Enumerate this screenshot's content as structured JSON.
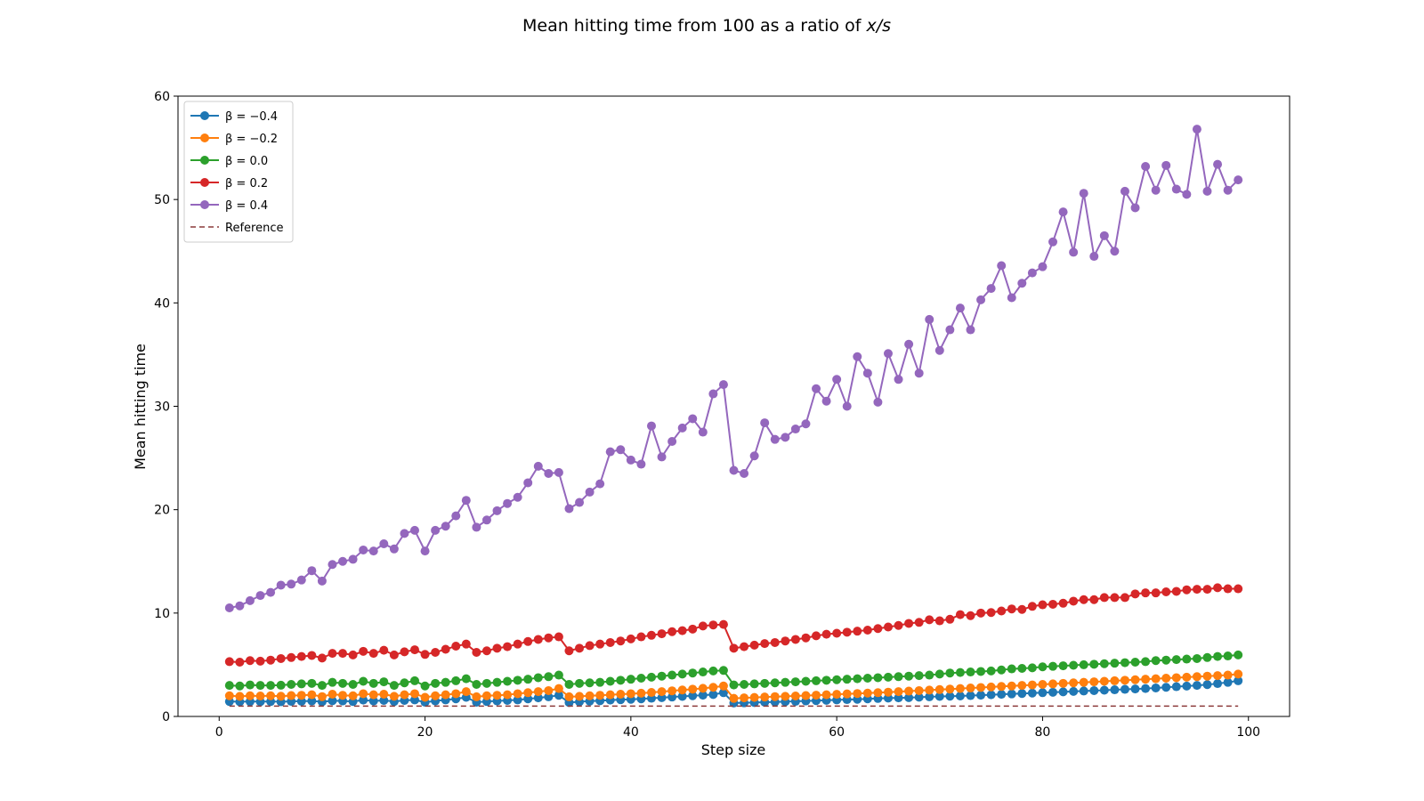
{
  "chart_data": {
    "type": "line",
    "title_prefix": "Mean hitting time from 100 as a ratio of ",
    "title_math": "x/s",
    "xlabel": "Step size",
    "ylabel": "Mean hitting time",
    "xlim": [
      -4,
      104
    ],
    "ylim": [
      0,
      60
    ],
    "xticks": [
      0,
      20,
      40,
      60,
      80,
      100
    ],
    "yticks": [
      0,
      10,
      20,
      30,
      40,
      50,
      60
    ],
    "legend_position": "upper-left",
    "x": [
      1,
      2,
      3,
      4,
      5,
      6,
      7,
      8,
      9,
      10,
      11,
      12,
      13,
      14,
      15,
      16,
      17,
      18,
      19,
      20,
      21,
      22,
      23,
      24,
      25,
      26,
      27,
      28,
      29,
      30,
      31,
      32,
      33,
      34,
      35,
      36,
      37,
      38,
      39,
      40,
      41,
      42,
      43,
      44,
      45,
      46,
      47,
      48,
      49,
      50,
      51,
      52,
      53,
      54,
      55,
      56,
      57,
      58,
      59,
      60,
      61,
      62,
      63,
      64,
      65,
      66,
      67,
      68,
      69,
      70,
      71,
      72,
      73,
      74,
      75,
      76,
      77,
      78,
      79,
      80,
      81,
      82,
      83,
      84,
      85,
      86,
      87,
      88,
      89,
      90,
      91,
      92,
      93,
      94,
      95,
      96,
      97,
      98,
      99
    ],
    "series": [
      {
        "name": "β = −0.4",
        "color": "#1f77b4",
        "marker": true,
        "values": [
          1.45,
          1.42,
          1.45,
          1.43,
          1.45,
          1.42,
          1.46,
          1.47,
          1.5,
          1.42,
          1.52,
          1.5,
          1.45,
          1.58,
          1.5,
          1.55,
          1.45,
          1.55,
          1.6,
          1.38,
          1.5,
          1.6,
          1.7,
          1.85,
          1.38,
          1.45,
          1.5,
          1.55,
          1.6,
          1.7,
          1.8,
          1.9,
          2.05,
          1.35,
          1.42,
          1.48,
          1.52,
          1.58,
          1.62,
          1.66,
          1.7,
          1.76,
          1.82,
          1.88,
          1.94,
          2.0,
          2.06,
          2.12,
          2.3,
          1.3,
          1.32,
          1.35,
          1.38,
          1.4,
          1.43,
          1.46,
          1.5,
          1.53,
          1.56,
          1.6,
          1.63,
          1.66,
          1.7,
          1.74,
          1.78,
          1.8,
          1.82,
          1.86,
          1.9,
          1.94,
          1.96,
          1.98,
          2.02,
          2.06,
          2.1,
          2.14,
          2.18,
          2.22,
          2.26,
          2.3,
          2.34,
          2.38,
          2.42,
          2.46,
          2.5,
          2.54,
          2.58,
          2.62,
          2.66,
          2.7,
          2.76,
          2.82,
          2.88,
          2.94,
          3.0,
          3.08,
          3.18,
          3.3,
          3.45
        ]
      },
      {
        "name": "β = −0.2",
        "color": "#ff7f0e",
        "marker": true,
        "values": [
          2.0,
          1.95,
          2.0,
          1.98,
          2.0,
          1.96,
          2.02,
          2.05,
          2.1,
          1.92,
          2.15,
          2.05,
          2.0,
          2.2,
          2.1,
          2.15,
          1.95,
          2.1,
          2.2,
          1.85,
          2.0,
          2.1,
          2.2,
          2.4,
          1.9,
          2.0,
          2.05,
          2.1,
          2.2,
          2.3,
          2.4,
          2.5,
          2.7,
          1.9,
          1.95,
          2.0,
          2.05,
          2.1,
          2.15,
          2.2,
          2.25,
          2.32,
          2.4,
          2.48,
          2.56,
          2.64,
          2.72,
          2.82,
          2.95,
          1.75,
          1.8,
          1.84,
          1.88,
          1.92,
          1.95,
          1.98,
          2.02,
          2.06,
          2.1,
          2.14,
          2.18,
          2.22,
          2.26,
          2.3,
          2.35,
          2.4,
          2.45,
          2.5,
          2.55,
          2.6,
          2.65,
          2.7,
          2.75,
          2.8,
          2.85,
          2.9,
          2.95,
          3.0,
          3.05,
          3.1,
          3.15,
          3.2,
          3.25,
          3.3,
          3.35,
          3.4,
          3.45,
          3.5,
          3.55,
          3.6,
          3.65,
          3.7,
          3.75,
          3.8,
          3.85,
          3.9,
          3.95,
          4.0,
          4.1
        ]
      },
      {
        "name": "β = 0.0",
        "color": "#2ca02c",
        "marker": true,
        "values": [
          3.0,
          2.95,
          3.05,
          3.0,
          3.0,
          3.02,
          3.1,
          3.15,
          3.2,
          3.0,
          3.3,
          3.2,
          3.1,
          3.4,
          3.2,
          3.35,
          3.0,
          3.25,
          3.45,
          2.95,
          3.2,
          3.3,
          3.45,
          3.65,
          3.1,
          3.2,
          3.3,
          3.4,
          3.5,
          3.6,
          3.75,
          3.85,
          4.0,
          3.1,
          3.2,
          3.25,
          3.3,
          3.4,
          3.5,
          3.6,
          3.7,
          3.8,
          3.9,
          4.0,
          4.1,
          4.2,
          4.3,
          4.4,
          4.45,
          3.05,
          3.1,
          3.15,
          3.2,
          3.25,
          3.3,
          3.35,
          3.4,
          3.45,
          3.5,
          3.55,
          3.6,
          3.65,
          3.7,
          3.75,
          3.8,
          3.85,
          3.9,
          3.95,
          4.0,
          4.1,
          4.2,
          4.25,
          4.3,
          4.35,
          4.4,
          4.5,
          4.6,
          4.65,
          4.7,
          4.8,
          4.85,
          4.9,
          4.95,
          5.0,
          5.05,
          5.1,
          5.15,
          5.2,
          5.25,
          5.3,
          5.4,
          5.45,
          5.5,
          5.55,
          5.6,
          5.7,
          5.8,
          5.85,
          5.95
        ]
      },
      {
        "name": "β = 0.2",
        "color": "#d62728",
        "marker": true,
        "values": [
          5.3,
          5.25,
          5.4,
          5.35,
          5.45,
          5.6,
          5.7,
          5.8,
          5.9,
          5.65,
          6.1,
          6.1,
          5.95,
          6.3,
          6.1,
          6.4,
          5.95,
          6.25,
          6.45,
          6.0,
          6.2,
          6.5,
          6.8,
          7.0,
          6.2,
          6.35,
          6.6,
          6.75,
          7.0,
          7.25,
          7.45,
          7.6,
          7.7,
          6.35,
          6.6,
          6.85,
          7.0,
          7.15,
          7.3,
          7.5,
          7.7,
          7.85,
          8.0,
          8.2,
          8.3,
          8.45,
          8.75,
          8.85,
          8.9,
          6.6,
          6.75,
          6.9,
          7.05,
          7.15,
          7.3,
          7.45,
          7.6,
          7.8,
          7.95,
          8.05,
          8.15,
          8.25,
          8.35,
          8.5,
          8.65,
          8.8,
          9.0,
          9.1,
          9.35,
          9.25,
          9.4,
          9.85,
          9.75,
          10.0,
          10.05,
          10.2,
          10.4,
          10.35,
          10.65,
          10.8,
          10.85,
          10.95,
          11.15,
          11.3,
          11.3,
          11.5,
          11.5,
          11.5,
          11.85,
          11.95,
          11.95,
          12.05,
          12.1,
          12.25,
          12.3,
          12.3,
          12.45,
          12.35,
          12.35
        ]
      },
      {
        "name": "β = 0.4",
        "color": "#9467bd",
        "marker": true,
        "values": [
          10.5,
          10.7,
          11.2,
          11.7,
          12.0,
          12.7,
          12.8,
          13.2,
          14.1,
          13.1,
          14.7,
          15.0,
          15.2,
          16.1,
          16.0,
          16.7,
          16.2,
          17.7,
          18.0,
          16.0,
          18.0,
          18.4,
          19.4,
          20.9,
          18.3,
          19.0,
          19.9,
          20.6,
          21.2,
          22.6,
          24.2,
          23.5,
          23.6,
          20.1,
          20.7,
          21.7,
          22.5,
          25.6,
          25.8,
          24.8,
          24.4,
          28.1,
          25.1,
          26.6,
          27.9,
          28.8,
          27.5,
          31.2,
          32.1,
          23.8,
          23.5,
          25.2,
          28.4,
          26.8,
          27.0,
          27.8,
          28.3,
          31.7,
          30.5,
          32.6,
          30.0,
          34.8,
          33.2,
          30.4,
          35.1,
          32.6,
          36.0,
          33.2,
          38.4,
          35.4,
          37.4,
          39.5,
          37.4,
          40.3,
          41.4,
          43.6,
          40.5,
          41.9,
          42.9,
          43.5,
          45.9,
          48.8,
          44.9,
          50.6,
          44.5,
          46.5,
          45.0,
          50.8,
          49.2,
          53.2,
          50.9,
          53.3,
          51.0,
          50.5,
          56.8,
          50.8,
          53.4,
          50.9,
          51.9
        ]
      },
      {
        "name": "Reference",
        "color": "#8c3a3a",
        "marker": false,
        "dashed": true,
        "values": [
          1,
          1,
          1,
          1,
          1,
          1,
          1,
          1,
          1,
          1,
          1,
          1,
          1,
          1,
          1,
          1,
          1,
          1,
          1,
          1,
          1,
          1,
          1,
          1,
          1,
          1,
          1,
          1,
          1,
          1,
          1,
          1,
          1,
          1,
          1,
          1,
          1,
          1,
          1,
          1,
          1,
          1,
          1,
          1,
          1,
          1,
          1,
          1,
          1,
          1,
          1,
          1,
          1,
          1,
          1,
          1,
          1,
          1,
          1,
          1,
          1,
          1,
          1,
          1,
          1,
          1,
          1,
          1,
          1,
          1,
          1,
          1,
          1,
          1,
          1,
          1,
          1,
          1,
          1,
          1,
          1,
          1,
          1,
          1,
          1,
          1,
          1,
          1,
          1,
          1,
          1,
          1,
          1,
          1,
          1,
          1,
          1,
          1,
          1
        ]
      }
    ]
  }
}
